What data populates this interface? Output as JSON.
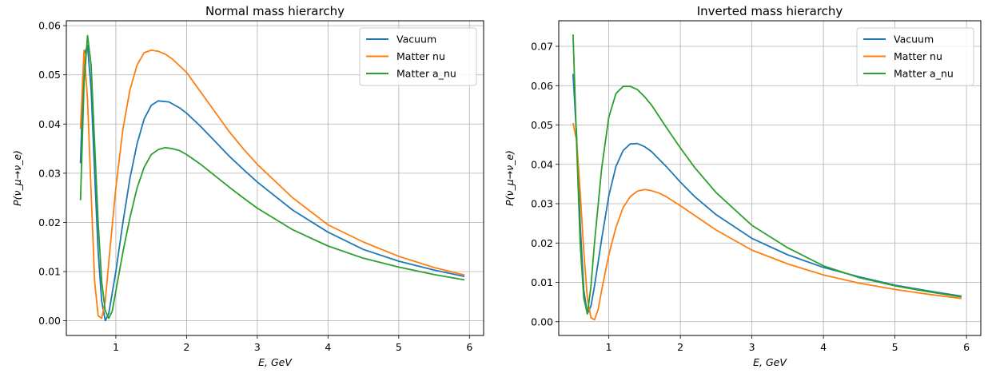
{
  "chart_data": [
    {
      "type": "line",
      "title": "Normal mass hierarchy",
      "xlabel": "E, GeV",
      "ylabel": "P(ν_μ→ν_e)",
      "xlim": [
        0.3,
        6.2
      ],
      "ylim": [
        -0.003,
        0.061
      ],
      "xticks": [
        1,
        2,
        3,
        4,
        5,
        6
      ],
      "yticks": [
        0.0,
        0.01,
        0.02,
        0.03,
        0.04,
        0.05,
        0.06
      ],
      "ytick_labels": [
        "0.00",
        "0.01",
        "0.02",
        "0.03",
        "0.04",
        "0.05",
        "0.06"
      ],
      "grid": true,
      "legend_position": "top-right",
      "series": [
        {
          "name": "Vacuum",
          "color": "#1f77b4",
          "x": [
            0.5,
            0.55,
            0.6,
            0.65,
            0.7,
            0.75,
            0.8,
            0.85,
            0.9,
            1.0,
            1.1,
            1.2,
            1.3,
            1.4,
            1.5,
            1.6,
            1.75,
            1.9,
            2.0,
            2.2,
            2.4,
            2.6,
            2.8,
            3.0,
            3.5,
            4.0,
            4.5,
            5.0,
            5.5,
            5.93
          ],
          "y": [
            0.032,
            0.054,
            0.056,
            0.047,
            0.03,
            0.014,
            0.004,
            0.0,
            0.0015,
            0.01,
            0.02,
            0.029,
            0.036,
            0.041,
            0.0438,
            0.0447,
            0.0445,
            0.0433,
            0.0422,
            0.0395,
            0.0365,
            0.0335,
            0.0308,
            0.0282,
            0.0225,
            0.018,
            0.0145,
            0.0121,
            0.0103,
            0.009
          ]
        },
        {
          "name": "Matter nu",
          "color": "#ff7f0e",
          "x": [
            0.5,
            0.55,
            0.6,
            0.65,
            0.7,
            0.75,
            0.8,
            0.85,
            0.9,
            1.0,
            1.1,
            1.2,
            1.3,
            1.4,
            1.5,
            1.6,
            1.7,
            1.8,
            2.0,
            2.2,
            2.4,
            2.6,
            2.8,
            3.0,
            3.5,
            4.0,
            4.5,
            5.0,
            5.5,
            5.93
          ],
          "y": [
            0.039,
            0.055,
            0.045,
            0.026,
            0.008,
            0.001,
            0.0005,
            0.004,
            0.012,
            0.027,
            0.039,
            0.047,
            0.052,
            0.0545,
            0.055,
            0.0548,
            0.0542,
            0.0532,
            0.0505,
            0.0465,
            0.0425,
            0.0385,
            0.035,
            0.0318,
            0.025,
            0.0195,
            0.016,
            0.0131,
            0.0108,
            0.0093
          ]
        },
        {
          "name": "Matter a_nu",
          "color": "#2ca02c",
          "x": [
            0.5,
            0.55,
            0.6,
            0.65,
            0.7,
            0.75,
            0.8,
            0.85,
            0.9,
            0.95,
            1.0,
            1.1,
            1.2,
            1.3,
            1.4,
            1.5,
            1.6,
            1.7,
            1.8,
            1.9,
            2.0,
            2.2,
            2.4,
            2.6,
            2.8,
            3.0,
            3.5,
            4.0,
            4.5,
            5.0,
            5.5,
            5.93
          ],
          "y": [
            0.0245,
            0.048,
            0.058,
            0.052,
            0.036,
            0.02,
            0.008,
            0.002,
            0.0005,
            0.002,
            0.006,
            0.014,
            0.021,
            0.027,
            0.0312,
            0.0338,
            0.0348,
            0.0352,
            0.035,
            0.0346,
            0.0338,
            0.0318,
            0.0295,
            0.0272,
            0.025,
            0.0229,
            0.0185,
            0.0152,
            0.0127,
            0.0109,
            0.0094,
            0.0083
          ]
        }
      ]
    },
    {
      "type": "line",
      "title": "Inverted mass hierarchy",
      "xlabel": "E, GeV",
      "ylabel": "P(ν_μ→ν_e)",
      "xlim": [
        0.3,
        6.2
      ],
      "ylim": [
        -0.0035,
        0.0765
      ],
      "xticks": [
        1,
        2,
        3,
        4,
        5,
        6
      ],
      "yticks": [
        0.0,
        0.01,
        0.02,
        0.03,
        0.04,
        0.05,
        0.06,
        0.07
      ],
      "ytick_labels": [
        "0.00",
        "0.01",
        "0.02",
        "0.03",
        "0.04",
        "0.05",
        "0.06",
        "0.07"
      ],
      "grid": true,
      "legend_position": "top-right",
      "series": [
        {
          "name": "Vacuum",
          "color": "#1f77b4",
          "x": [
            0.5,
            0.55,
            0.6,
            0.65,
            0.7,
            0.75,
            0.8,
            0.9,
            1.0,
            1.1,
            1.2,
            1.3,
            1.4,
            1.5,
            1.6,
            1.8,
            2.0,
            2.2,
            2.5,
            3.0,
            3.5,
            4.0,
            4.5,
            5.0,
            5.5,
            5.93
          ],
          "y": [
            0.063,
            0.047,
            0.025,
            0.008,
            0.002,
            0.004,
            0.009,
            0.021,
            0.032,
            0.0395,
            0.0435,
            0.0452,
            0.0453,
            0.0445,
            0.0432,
            0.0395,
            0.0355,
            0.0318,
            0.0272,
            0.0212,
            0.017,
            0.0138,
            0.0114,
            0.0093,
            0.0077,
            0.0065
          ]
        },
        {
          "name": "Matter nu",
          "color": "#ff7f0e",
          "x": [
            0.5,
            0.55,
            0.6,
            0.65,
            0.7,
            0.75,
            0.8,
            0.85,
            0.9,
            1.0,
            1.1,
            1.2,
            1.3,
            1.4,
            1.5,
            1.6,
            1.7,
            1.8,
            2.0,
            2.2,
            2.5,
            3.0,
            3.5,
            4.0,
            4.5,
            5.0,
            5.5,
            5.93
          ],
          "y": [
            0.0505,
            0.046,
            0.033,
            0.018,
            0.006,
            0.001,
            0.0005,
            0.003,
            0.008,
            0.017,
            0.024,
            0.029,
            0.0318,
            0.0332,
            0.0336,
            0.0333,
            0.0327,
            0.0318,
            0.0295,
            0.027,
            0.0233,
            0.0182,
            0.0147,
            0.0119,
            0.0098,
            0.0082,
            0.0069,
            0.0059
          ]
        },
        {
          "name": "Matter a_nu",
          "color": "#2ca02c",
          "x": [
            0.5,
            0.55,
            0.6,
            0.65,
            0.7,
            0.75,
            0.8,
            0.9,
            1.0,
            1.1,
            1.2,
            1.3,
            1.4,
            1.5,
            1.6,
            1.8,
            2.0,
            2.2,
            2.5,
            3.0,
            3.5,
            4.0,
            4.5,
            5.0,
            5.5,
            5.93
          ],
          "y": [
            0.073,
            0.045,
            0.02,
            0.006,
            0.002,
            0.009,
            0.02,
            0.039,
            0.052,
            0.058,
            0.0598,
            0.0598,
            0.059,
            0.0572,
            0.055,
            0.0495,
            0.0442,
            0.0392,
            0.0328,
            0.0245,
            0.0188,
            0.0142,
            0.0112,
            0.0091,
            0.0075,
            0.0063
          ]
        }
      ]
    }
  ]
}
